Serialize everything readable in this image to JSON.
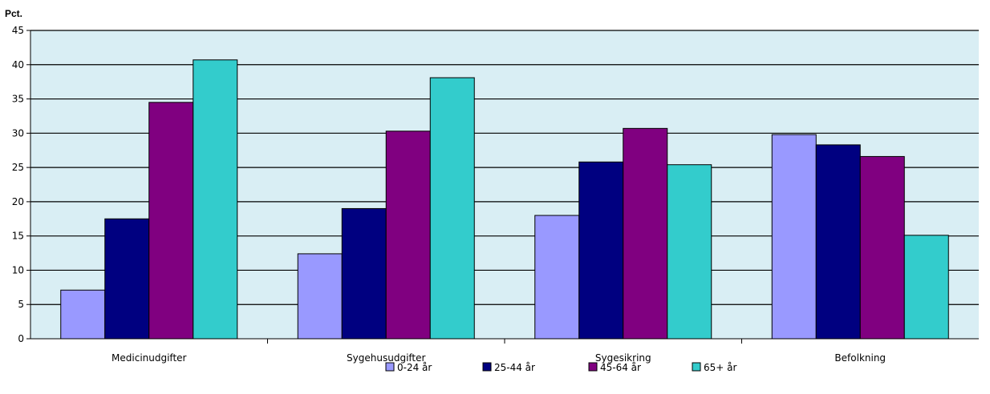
{
  "chart_data": {
    "type": "bar",
    "ylabel": "Pct.",
    "xlabel": "",
    "ylim": [
      0,
      45
    ],
    "yticks": [
      "0",
      "5",
      "10",
      "15",
      "20",
      "25",
      "30",
      "35",
      "40",
      "45"
    ],
    "grid": true,
    "legend_position": "bottom",
    "plot_background": "#d9eef4",
    "categories": [
      "Medicinudgifter",
      "Sygehusudgifter",
      "Sygesikring",
      "Befolkning"
    ],
    "series": [
      {
        "name": "0-24 år",
        "color": "#9999ff",
        "values": [
          7.1,
          12.4,
          18.0,
          29.8
        ]
      },
      {
        "name": "25-44 år",
        "color": "#000080",
        "values": [
          17.5,
          19.0,
          25.8,
          28.3
        ]
      },
      {
        "name": "45-64 år",
        "color": "#800080",
        "values": [
          34.5,
          30.3,
          30.7,
          26.6
        ]
      },
      {
        "name": "65+ år",
        "color": "#33cccc",
        "values": [
          40.7,
          38.1,
          25.4,
          15.1
        ]
      }
    ]
  }
}
